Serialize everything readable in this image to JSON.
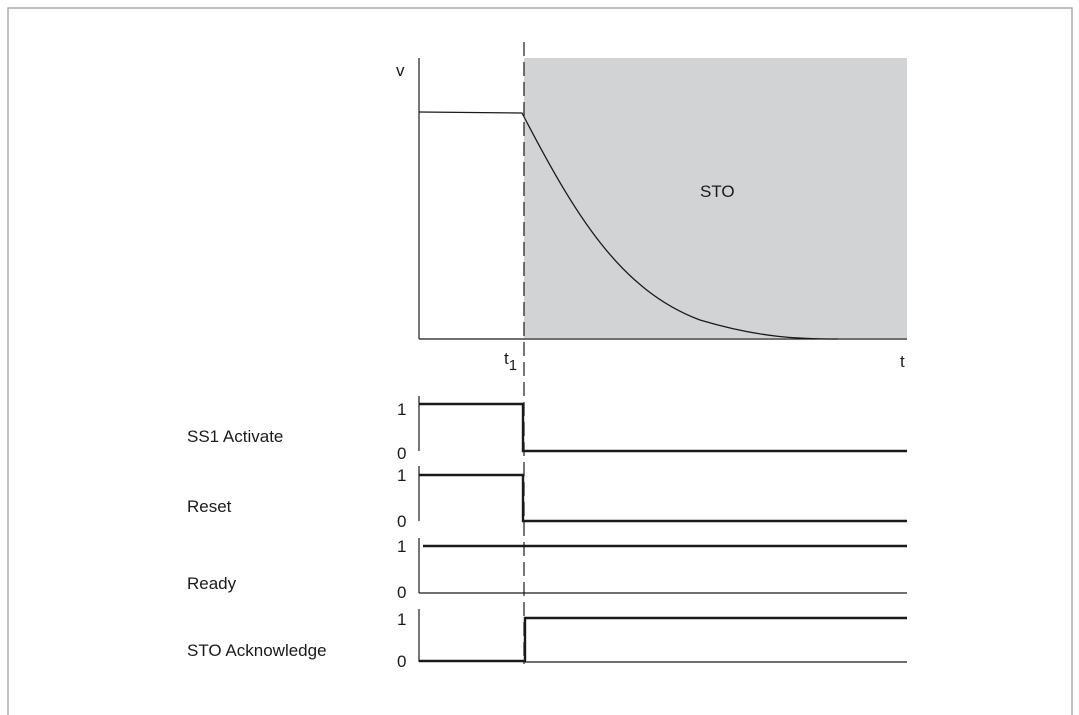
{
  "colors": {
    "sto_region": "#d2d3d5",
    "line": "#1a1a1a",
    "frame": "#9a9a9a",
    "background": "#ffffff"
  },
  "velocity_plot": {
    "y_axis_label": "v",
    "x_axis_label": "t",
    "t1_label": "t",
    "t1_subscript": "1",
    "region_label": "STO"
  },
  "signals": [
    {
      "name": "SS1 Activate",
      "high_label": "1",
      "low_label": "0",
      "before_t1": 1,
      "after_t1": 0
    },
    {
      "name": "Reset",
      "high_label": "1",
      "low_label": "0",
      "before_t1": 1,
      "after_t1": 0
    },
    {
      "name": "Ready",
      "high_label": "1",
      "low_label": "0",
      "before_t1": 1,
      "after_t1": 1
    },
    {
      "name": "STO Acknowledge",
      "high_label": "1",
      "low_label": "0",
      "before_t1": 0,
      "after_t1": 1
    }
  ]
}
